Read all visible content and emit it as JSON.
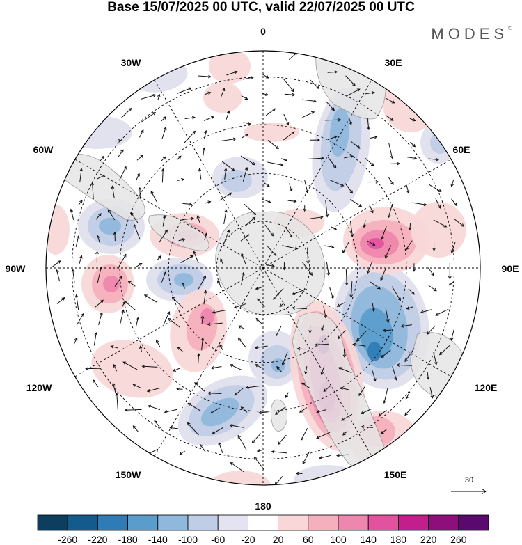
{
  "title": "Base 15/07/2025 00 UTC, valid 22/07/2025 00 UTC",
  "brand": "MODES",
  "brand_mark": "©",
  "longitude_labels": {
    "lon_0": "0",
    "lon_30e": "30E",
    "lon_60e": "60E",
    "lon_90e": "90E",
    "lon_120e": "120E",
    "lon_150e": "150E",
    "lon_180": "180",
    "lon_150w": "150W",
    "lon_120w": "120W",
    "lon_90w": "90W",
    "lon_60w": "60W",
    "lon_30w": "30W"
  },
  "reference_vector": {
    "label": "30"
  },
  "colorbar": {
    "ticks": [
      "-260",
      "-220",
      "-180",
      "-140",
      "-100",
      "-60",
      "-20",
      "20",
      "60",
      "100",
      "140",
      "180",
      "220",
      "260"
    ],
    "colors": [
      "#0d3e5e",
      "#135b8c",
      "#2f7bb5",
      "#5a9ccb",
      "#8fb8dc",
      "#bfcde6",
      "#e4e3f1",
      "#ffffff",
      "#f9d7d8",
      "#f5b0bd",
      "#ef86ad",
      "#e2529f",
      "#c21f8c",
      "#8e0f7c",
      "#5a0a6e"
    ]
  },
  "map_colors": {
    "land": "#e6e6e6",
    "land_edge": "#8a8a8a",
    "neg_light": "#dfe0ee",
    "neg_mid": "#bfcde6",
    "neg_strong": "#8fb8dc",
    "neg_deep": "#5a9ccb",
    "neg_core": "#2f7bb5",
    "pos_light": "#f9d7d8",
    "pos_mid": "#f5b0bd",
    "pos_strong": "#ef86ad",
    "pos_deep": "#e2529f",
    "pos_core": "#c21f8c",
    "pos_max": "#8e0f7c"
  }
}
